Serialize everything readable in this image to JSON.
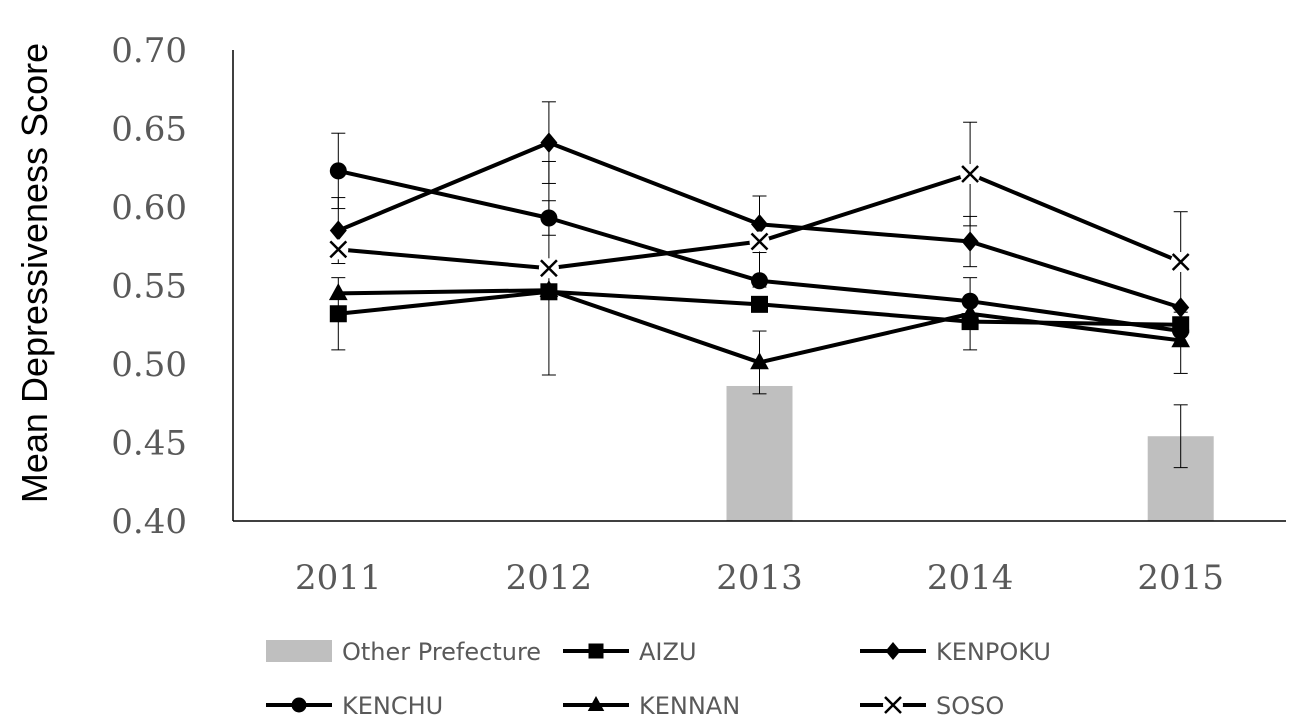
{
  "chart_data": {
    "type": "bar",
    "ylabel": "Mean Depressiveness Score",
    "xlabel": "",
    "categories": [
      "2011",
      "2012",
      "2013",
      "2014",
      "2015"
    ],
    "ylim": [
      0.4,
      0.7
    ],
    "yticks": [
      "0.40",
      "0.45",
      "0.50",
      "0.55",
      "0.60",
      "0.65",
      "0.70"
    ],
    "grid": false,
    "legend_position": "bottom",
    "series": [
      {
        "name": "Other Prefecture",
        "kind": "bar",
        "color": "#bfbfbf",
        "values": [
          null,
          null,
          0.486,
          null,
          0.454
        ],
        "err": [
          null,
          null,
          0.0,
          null,
          0.02
        ]
      },
      {
        "name": "AIZU",
        "kind": "line",
        "marker": "square",
        "color": "#000000",
        "values": [
          0.532,
          0.546,
          0.538,
          0.527,
          0.525
        ],
        "err": [
          0.023,
          0.0,
          0.0,
          0.0,
          0.0
        ]
      },
      {
        "name": "KENPOKU",
        "kind": "line",
        "marker": "diamond",
        "color": "#000000",
        "values": [
          0.585,
          0.641,
          0.589,
          0.578,
          0.536
        ],
        "err": [
          0.021,
          0.026,
          0.018,
          0.016,
          0.0
        ]
      },
      {
        "name": "KENCHU",
        "kind": "line",
        "marker": "circle",
        "color": "#000000",
        "values": [
          0.623,
          0.593,
          0.553,
          0.54,
          0.521
        ],
        "err": [
          0.024,
          0.011,
          0.0,
          0.0,
          0.0
        ]
      },
      {
        "name": "KENNAN",
        "kind": "line",
        "marker": "triangle",
        "color": "#000000",
        "values": [
          0.545,
          0.547,
          0.501,
          0.532,
          0.515
        ],
        "err": [
          0.0,
          0.0,
          0.02,
          0.023,
          0.021
        ]
      },
      {
        "name": "SOSO",
        "kind": "line",
        "marker": "x",
        "color": "#000000",
        "values": [
          0.573,
          0.561,
          0.578,
          0.621,
          0.565
        ],
        "err": [
          0.0,
          0.068,
          0.029,
          0.033,
          0.032
        ]
      }
    ]
  }
}
